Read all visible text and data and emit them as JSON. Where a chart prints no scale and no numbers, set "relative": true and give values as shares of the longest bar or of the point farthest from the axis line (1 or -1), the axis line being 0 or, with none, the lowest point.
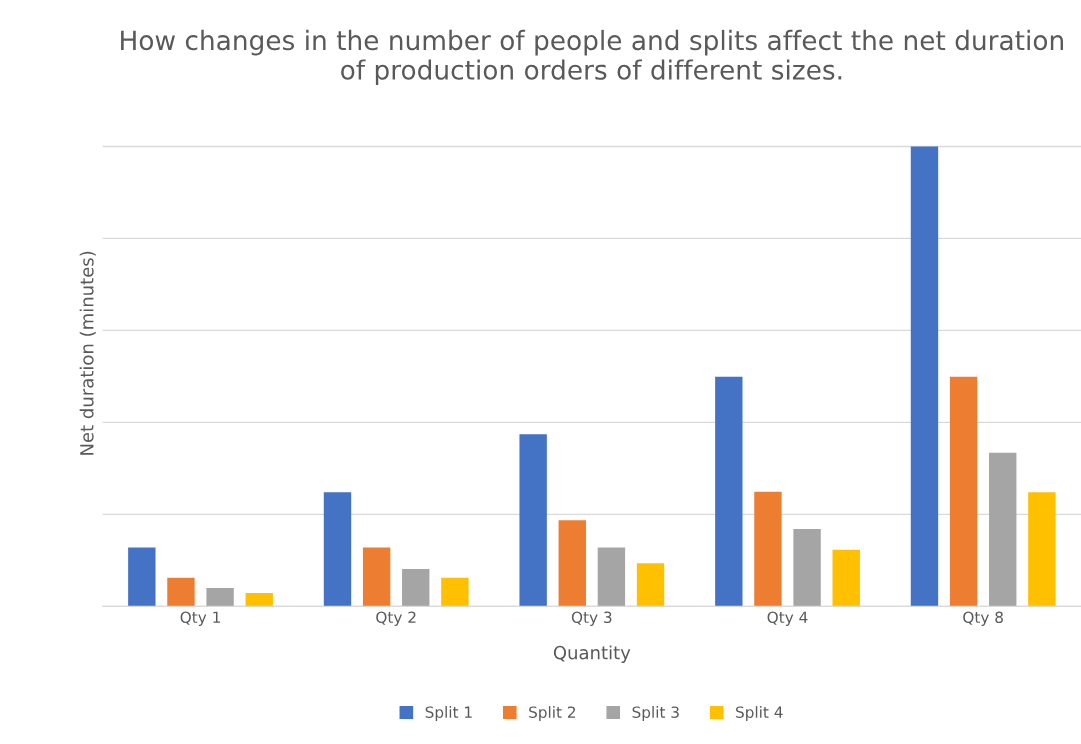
{
  "chart_data": {
    "type": "bar",
    "title": "How changes in the number of people and splits affect the net duration of production orders of different sizes.",
    "xlabel": "Quantity",
    "ylabel": "Net duration (minutes)",
    "relative": true,
    "grid": "y",
    "legend": "bottom",
    "categories": [
      "Qty 1",
      "Qty 2",
      "Qty 3",
      "Qty 4",
      "Qty 8"
    ],
    "series": [
      {
        "name": "Split 1",
        "color": "#4472c4",
        "values": [
          0.128,
          0.248,
          0.374,
          0.499,
          1
        ]
      },
      {
        "name": "Split 2",
        "color": "#ed7d31",
        "values": [
          0.062,
          0.128,
          0.187,
          0.249,
          0.499
        ]
      },
      {
        "name": "Split 3",
        "color": "#a5a5a5",
        "values": [
          0.04,
          0.081,
          0.128,
          0.168,
          0.334
        ]
      },
      {
        "name": "Split 4",
        "color": "#ffc000",
        "values": [
          0.029,
          0.062,
          0.094,
          0.123,
          0.248
        ]
      }
    ]
  }
}
